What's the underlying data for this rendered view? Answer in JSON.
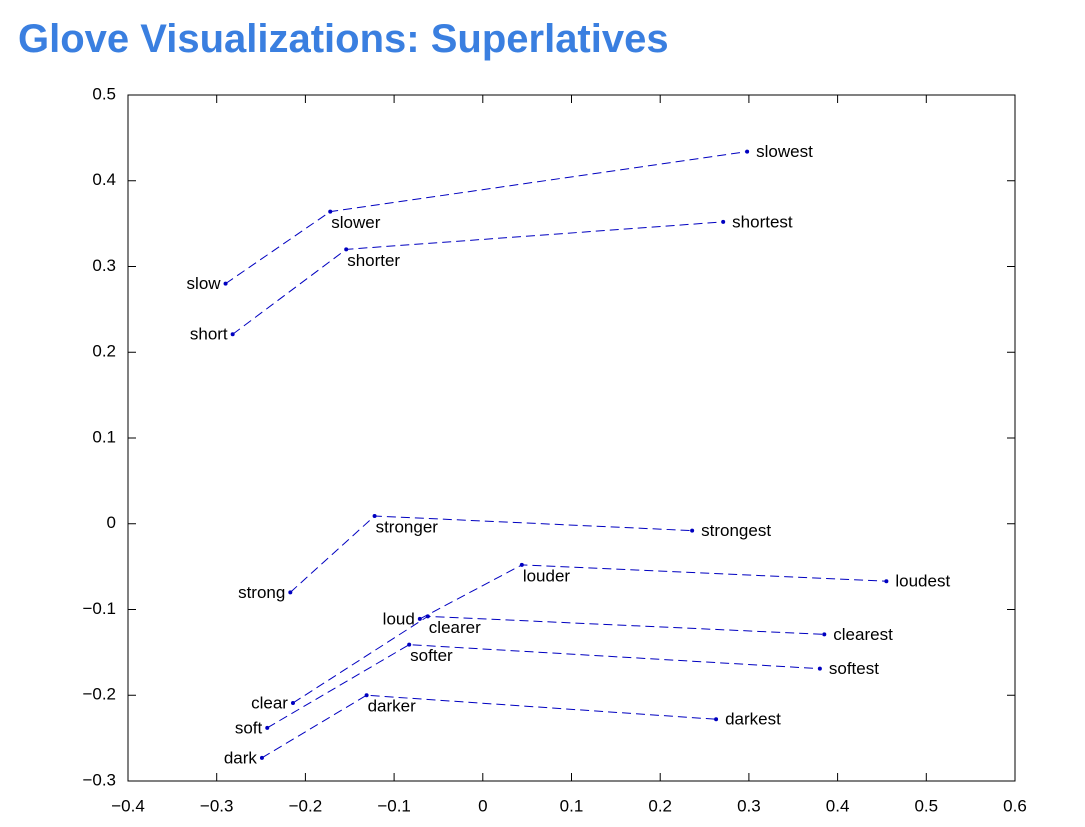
{
  "chart_data": {
    "type": "scatter",
    "title": "Glove Visualizations: Superlatives",
    "color": "#0000c0",
    "xlim": [
      -0.4,
      0.6
    ],
    "xticks": [
      {
        "value": -0.4,
        "label": "−0.4"
      },
      {
        "value": -0.3,
        "label": "−0.3"
      },
      {
        "value": -0.2,
        "label": "−0.2"
      },
      {
        "value": -0.1,
        "label": "−0.1"
      },
      0,
      0.1,
      0.2,
      0.3,
      0.4,
      0.5,
      0.6
    ],
    "ylim": [
      -0.3,
      0.5
    ],
    "yticks": [
      {
        "value": -0.3,
        "label": "−0.3"
      },
      {
        "value": -0.2,
        "label": "−0.2"
      },
      {
        "value": -0.1,
        "label": "−0.1"
      },
      0,
      0.1,
      0.2,
      0.3,
      0.4,
      0.5
    ],
    "series": [
      {
        "labels": [
          "slow",
          "slower",
          "slowest"
        ],
        "x": [
          -0.29,
          -0.172,
          0.298
        ],
        "y": [
          0.28,
          0.364,
          0.434
        ]
      },
      {
        "labels": [
          "short",
          "shorter",
          "shortest"
        ],
        "x": [
          -0.282,
          -0.154,
          0.271
        ],
        "y": [
          0.221,
          0.32,
          0.352
        ]
      },
      {
        "labels": [
          "strong",
          "stronger",
          "strongest"
        ],
        "x": [
          -0.217,
          -0.122,
          0.236
        ],
        "y": [
          -0.08,
          0.009,
          -0.008
        ]
      },
      {
        "labels": [
          "loud",
          "louder",
          "loudest"
        ],
        "x": [
          -0.071,
          0.044,
          0.455
        ],
        "y": [
          -0.111,
          -0.048,
          -0.067
        ]
      },
      {
        "labels": [
          "clear",
          "clearer",
          "clearest"
        ],
        "x": [
          -0.214,
          -0.062,
          0.385
        ],
        "y": [
          -0.209,
          -0.108,
          -0.129
        ]
      },
      {
        "labels": [
          "soft",
          "softer",
          "softest"
        ],
        "x": [
          -0.243,
          -0.083,
          0.38
        ],
        "y": [
          -0.238,
          -0.141,
          -0.169
        ]
      },
      {
        "labels": [
          "dark",
          "darker",
          "darkest"
        ],
        "x": [
          -0.249,
          -0.131,
          0.263
        ],
        "y": [
          -0.273,
          -0.2,
          -0.228
        ]
      }
    ]
  }
}
